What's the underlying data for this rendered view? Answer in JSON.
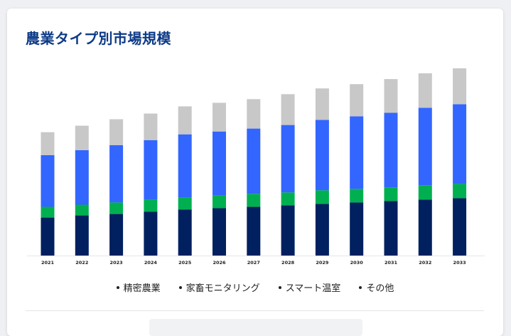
{
  "title": "農業タイプ別市場規模",
  "colors": {
    "title": "#0d3a86",
    "series": [
      "#002060",
      "#00b050",
      "#3366ff",
      "#c8c8c8"
    ]
  },
  "legend": {
    "items": [
      "精密農業",
      "家畜モニタリング",
      "スマート温室",
      "その他"
    ]
  },
  "chart_data": {
    "type": "bar",
    "stacked": true,
    "title": "農業タイプ別市場規模",
    "xlabel": "",
    "ylabel": "",
    "categories": [
      "2021",
      "2022",
      "2023",
      "2024",
      "2025",
      "2026",
      "2027",
      "2028",
      "2029",
      "2030",
      "2031",
      "2032",
      "2033"
    ],
    "series": [
      {
        "name": "精密農業",
        "values": [
          53,
          56,
          58,
          61,
          64,
          66,
          68,
          70,
          72,
          74,
          76,
          78,
          80
        ]
      },
      {
        "name": "家畜モニタリング",
        "values": [
          15,
          15,
          16,
          17,
          17,
          18,
          18,
          18,
          19,
          19,
          19,
          20,
          20
        ]
      },
      {
        "name": "スマート温室",
        "values": [
          72,
          76,
          80,
          83,
          88,
          89,
          91,
          94,
          98,
          101,
          104,
          108,
          111
        ]
      },
      {
        "name": "その他",
        "values": [
          32,
          34,
          36,
          37,
          39,
          40,
          41,
          43,
          44,
          45,
          47,
          48,
          50
        ]
      }
    ],
    "ylim": [
      0,
      260
    ],
    "grid": false,
    "legend_position": "bottom"
  }
}
